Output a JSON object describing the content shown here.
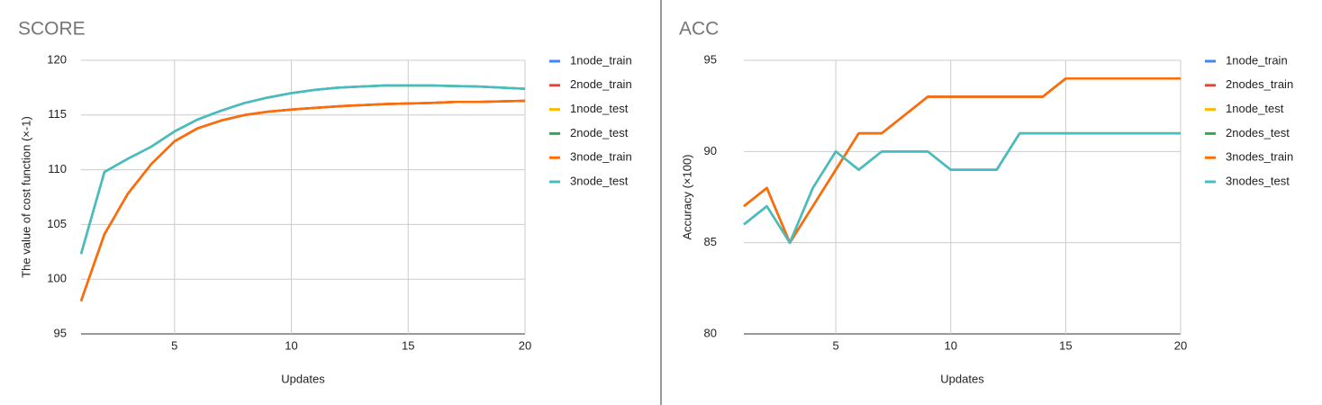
{
  "chart_data": [
    {
      "type": "line",
      "title": "SCORE",
      "xlabel": "Updates",
      "ylabel": "The value of cost function (×-1)",
      "x": [
        1,
        2,
        3,
        4,
        5,
        6,
        7,
        8,
        9,
        10,
        11,
        12,
        13,
        14,
        15,
        16,
        17,
        18,
        19,
        20
      ],
      "xlim": [
        1,
        20
      ],
      "xticks": [
        5,
        10,
        15,
        20
      ],
      "ylim": [
        95,
        120
      ],
      "yticks": [
        95,
        100,
        105,
        110,
        115,
        120
      ],
      "grid": true,
      "legend": "right",
      "series": [
        {
          "name": "1node_train",
          "color": "#4285f4",
          "values": [
            98.0,
            104.1,
            107.8,
            110.5,
            112.6,
            113.8,
            114.5,
            115.0,
            115.3,
            115.5,
            115.65,
            115.8,
            115.9,
            116.0,
            116.05,
            116.1,
            116.2,
            116.2,
            116.25,
            116.3
          ]
        },
        {
          "name": "2node_train",
          "color": "#ea4335",
          "values": [
            98.0,
            104.1,
            107.8,
            110.5,
            112.6,
            113.8,
            114.5,
            115.0,
            115.3,
            115.5,
            115.65,
            115.8,
            115.9,
            116.0,
            116.05,
            116.1,
            116.2,
            116.2,
            116.25,
            116.3
          ]
        },
        {
          "name": "1node_test",
          "color": "#fbbc04",
          "values": [
            102.3,
            109.8,
            111.0,
            112.1,
            113.5,
            114.6,
            115.4,
            116.1,
            116.6,
            117.0,
            117.3,
            117.5,
            117.6,
            117.7,
            117.7,
            117.7,
            117.65,
            117.6,
            117.5,
            117.4
          ]
        },
        {
          "name": "2node_test",
          "color": "#34a853",
          "values": [
            102.3,
            109.8,
            111.0,
            112.1,
            113.5,
            114.6,
            115.4,
            116.1,
            116.6,
            117.0,
            117.3,
            117.5,
            117.6,
            117.7,
            117.7,
            117.7,
            117.65,
            117.6,
            117.5,
            117.4
          ]
        },
        {
          "name": "3node_train",
          "color": "#ff6d01",
          "values": [
            98.0,
            104.1,
            107.8,
            110.5,
            112.6,
            113.8,
            114.5,
            115.0,
            115.3,
            115.5,
            115.65,
            115.8,
            115.9,
            116.0,
            116.05,
            116.1,
            116.2,
            116.2,
            116.25,
            116.3
          ]
        },
        {
          "name": "3node_test",
          "color": "#46bdc6",
          "values": [
            102.3,
            109.8,
            111.0,
            112.1,
            113.5,
            114.6,
            115.4,
            116.1,
            116.6,
            117.0,
            117.3,
            117.5,
            117.6,
            117.7,
            117.7,
            117.7,
            117.65,
            117.6,
            117.5,
            117.4
          ]
        }
      ]
    },
    {
      "type": "line",
      "title": "ACC",
      "xlabel": "Updates",
      "ylabel": "Accuracy (×100)",
      "x": [
        1,
        2,
        3,
        4,
        5,
        6,
        7,
        8,
        9,
        10,
        11,
        12,
        13,
        14,
        15,
        16,
        17,
        18,
        19,
        20
      ],
      "xlim": [
        1,
        20
      ],
      "xticks": [
        5,
        10,
        15,
        20
      ],
      "ylim": [
        80,
        95
      ],
      "yticks": [
        80,
        85,
        90,
        95
      ],
      "grid": true,
      "legend": "right",
      "series": [
        {
          "name": "1node_train",
          "color": "#4285f4",
          "values": [
            87,
            88,
            85,
            87,
            89,
            91,
            91,
            92,
            93,
            93,
            93,
            93,
            93,
            93,
            94,
            94,
            94,
            94,
            94,
            94
          ]
        },
        {
          "name": "2nodes_train",
          "color": "#ea4335",
          "values": [
            87,
            88,
            85,
            87,
            89,
            91,
            91,
            92,
            93,
            93,
            93,
            93,
            93,
            93,
            94,
            94,
            94,
            94,
            94,
            94
          ]
        },
        {
          "name": "1node_test",
          "color": "#fbbc04",
          "values": [
            86,
            87,
            85,
            88,
            90,
            89,
            90,
            90,
            90,
            89,
            89,
            89,
            91,
            91,
            91,
            91,
            91,
            91,
            91,
            91
          ]
        },
        {
          "name": "2nodes_test",
          "color": "#34a853",
          "values": [
            86,
            87,
            85,
            88,
            90,
            89,
            90,
            90,
            90,
            89,
            89,
            89,
            91,
            91,
            91,
            91,
            91,
            91,
            91,
            91
          ]
        },
        {
          "name": "3nodes_train",
          "color": "#ff6d01",
          "values": [
            87,
            88,
            85,
            87,
            89,
            91,
            91,
            92,
            93,
            93,
            93,
            93,
            93,
            93,
            94,
            94,
            94,
            94,
            94,
            94
          ]
        },
        {
          "name": "3nodes_test",
          "color": "#46bdc6",
          "values": [
            86,
            87,
            85,
            88,
            90,
            89,
            90,
            90,
            90,
            89,
            89,
            89,
            91,
            91,
            91,
            91,
            91,
            91,
            91,
            91
          ]
        }
      ]
    }
  ]
}
